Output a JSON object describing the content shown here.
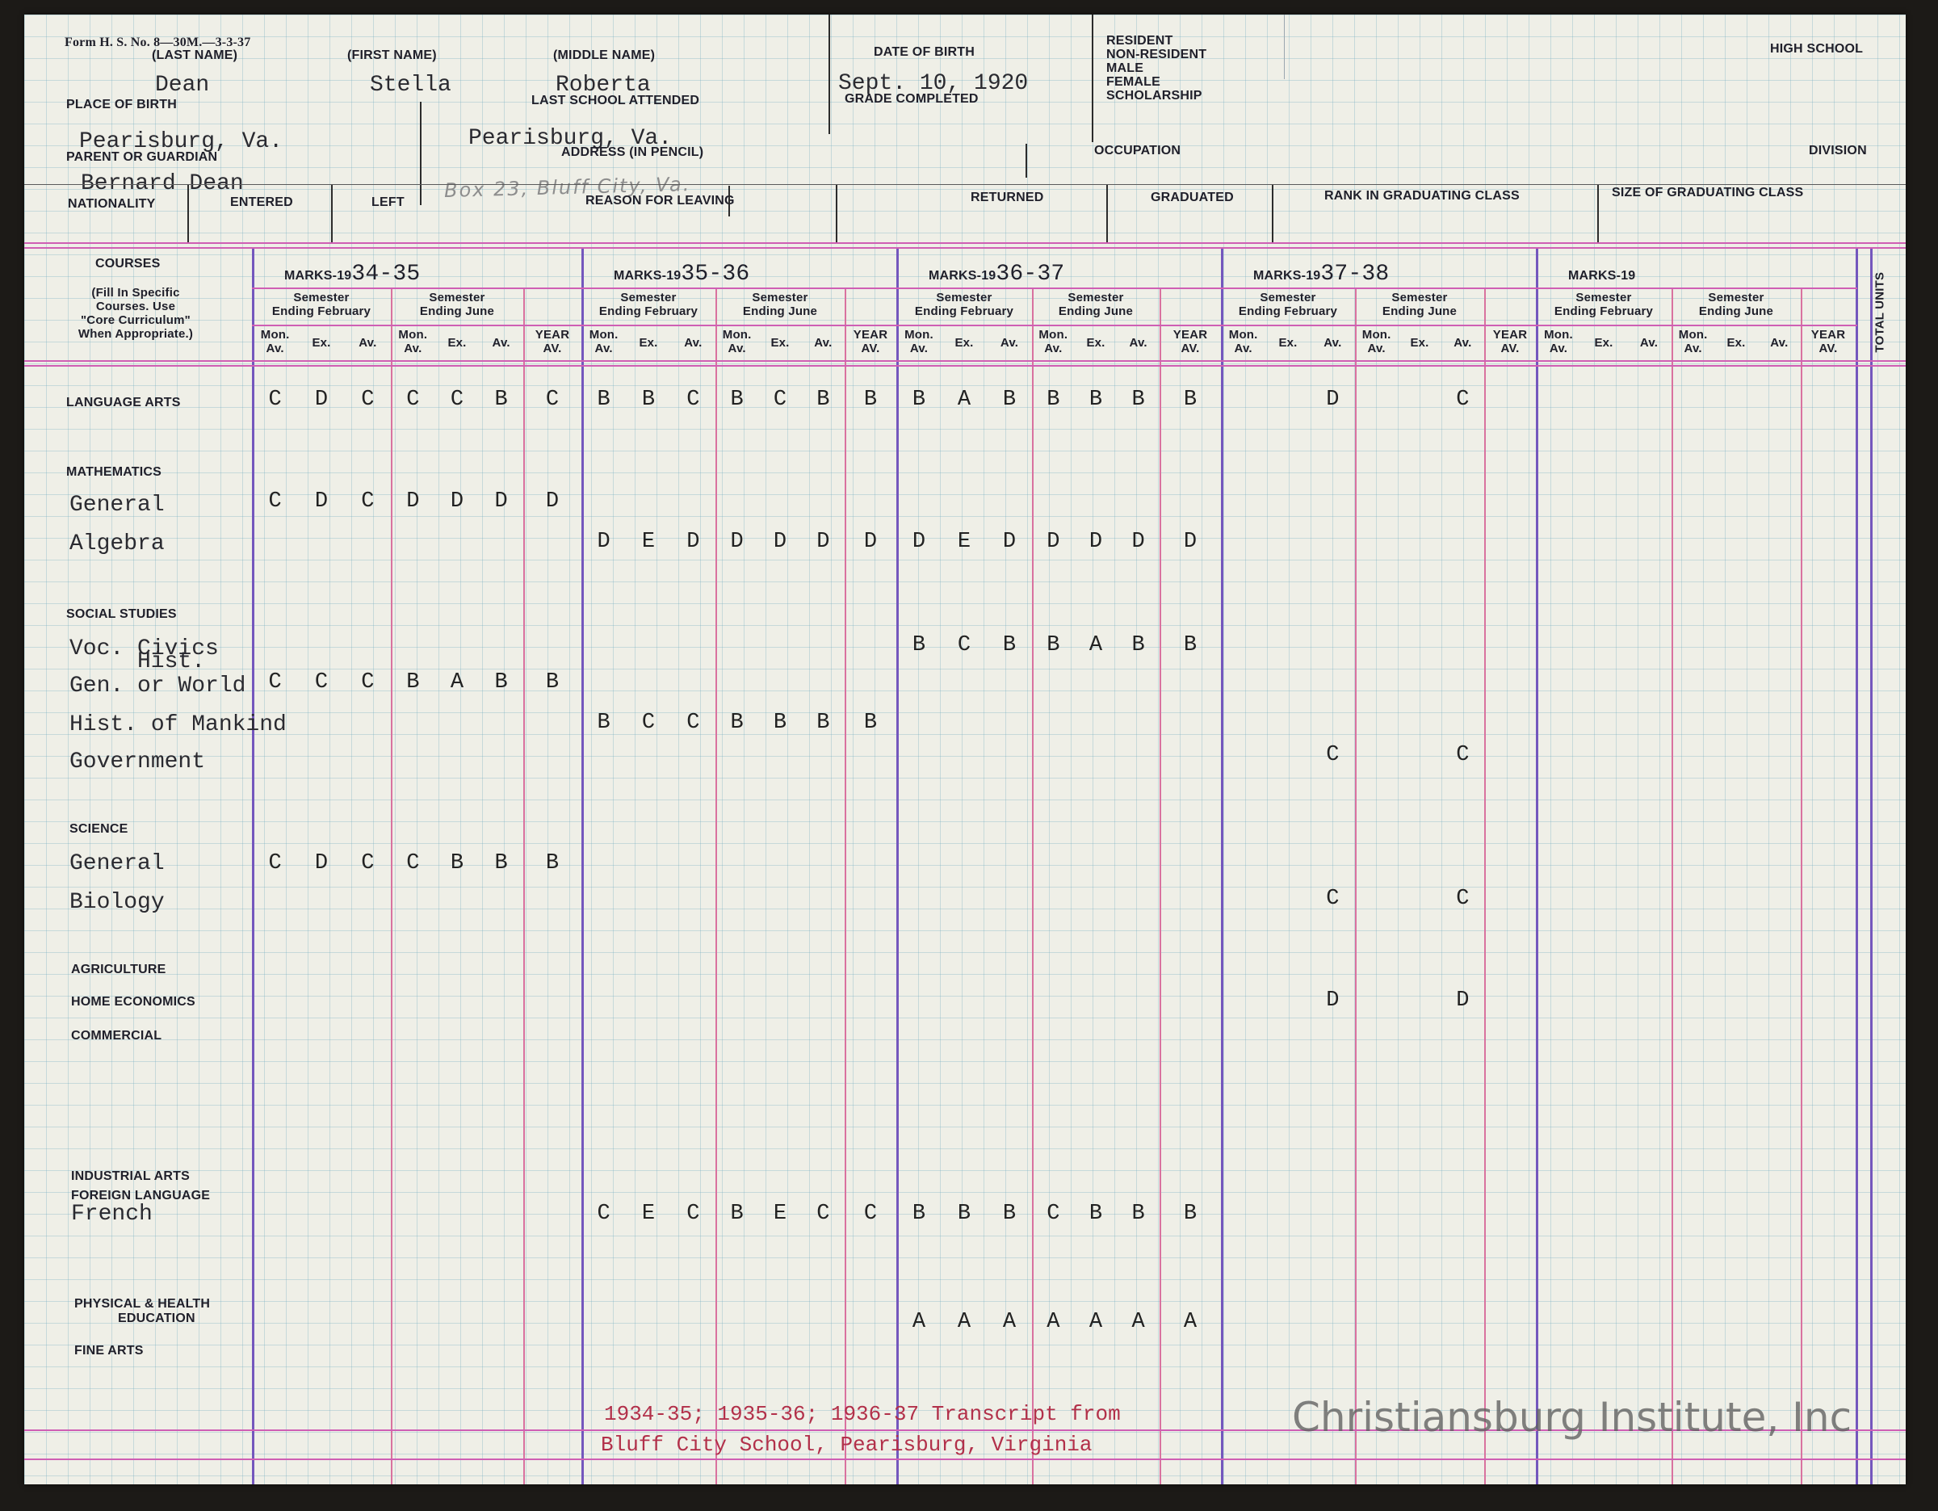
{
  "header": {
    "form_no": "Form H. S. No. 8—30M.—3-3-37",
    "last_name_label": "(LAST NAME)",
    "first_name_label": "(FIRST NAME)",
    "middle_name_label": "(MIDDLE NAME)",
    "dob_label": "DATE OF BIRTH",
    "resident_labels": [
      "RESIDENT",
      "NON-RESIDENT",
      "MALE",
      "FEMALE",
      "SCHOLARSHIP"
    ],
    "high_school_label": "HIGH SCHOOL",
    "place_of_birth_label": "PLACE OF BIRTH",
    "last_school_label": "LAST SCHOOL ATTENDED",
    "grade_completed_label": "GRADE COMPLETED",
    "parent_label": "PARENT OR GUARDIAN",
    "address_label": "ADDRESS (IN PENCIL)",
    "occupation_label": "OCCUPATION",
    "division_label": "DIVISION",
    "nationality_label": "NATIONALITY",
    "entered_label": "ENTERED",
    "left_label": "LEFT",
    "reason_label": "REASON FOR LEAVING",
    "returned_label": "RETURNED",
    "graduated_label": "GRADUATED",
    "rank_label": "RANK IN GRADUATING CLASS",
    "size_label": "SIZE OF GRADUATING CLASS"
  },
  "student": {
    "last_name": "Dean",
    "first_name": "Stella",
    "middle_name": "Roberta",
    "dob": "Sept. 10, 1920",
    "place_of_birth": "Pearisburg, Va.",
    "last_school": "Pearisburg, Va.",
    "parent": "Bernard Dean",
    "address_pencil": "Box 23, Bluff City, Va."
  },
  "marks_header": {
    "courses_label": "COURSES",
    "courses_note": [
      "(Fill In Specific",
      "Courses. Use",
      "\"Core Curriculum\"",
      "When Appropriate.)"
    ],
    "marks_prefix": "MARKS-19",
    "years": [
      "34-35",
      "35-36",
      "36-37",
      "37-38",
      ""
    ],
    "sem_feb": [
      "Semester",
      "Ending February"
    ],
    "sem_june": [
      "Semester",
      "Ending June"
    ],
    "col_mon": [
      "Mon.",
      "Av."
    ],
    "col_ex": "Ex.",
    "col_av": "Av.",
    "col_year": [
      "YEAR",
      "AV."
    ],
    "total_units": "TOTAL UNITS"
  },
  "categories": [
    {
      "label": "LANGUAGE ARTS"
    },
    {
      "label": "MATHEMATICS"
    },
    {
      "label": "SOCIAL STUDIES"
    },
    {
      "label": "SCIENCE"
    },
    {
      "label": "AGRICULTURE"
    },
    {
      "label": "HOME ECONOMICS"
    },
    {
      "label": "COMMERCIAL"
    },
    {
      "label": "INDUSTRIAL ARTS"
    },
    {
      "label": "FOREIGN LANGUAGE"
    },
    {
      "label": "PHYSICAL & HEALTH"
    },
    {
      "label": "EDUCATION"
    },
    {
      "label": "FINE ARTS"
    }
  ],
  "courses": [
    {
      "name": "General"
    },
    {
      "name": "Algebra"
    },
    {
      "name": "Voc. Civics"
    },
    {
      "name": "Hist."
    },
    {
      "name": "Gen. or World"
    },
    {
      "name": "Hist. of Mankind"
    },
    {
      "name": "Government"
    },
    {
      "name": "General"
    },
    {
      "name": "Biology"
    },
    {
      "name": "French"
    }
  ],
  "grades": [
    {
      "row": "language-arts",
      "y1": [
        "C",
        "D",
        "C",
        "C",
        "C",
        "B",
        "C"
      ],
      "y2": [
        "B",
        "B",
        "C",
        "B",
        "C",
        "B",
        "B"
      ],
      "y3": [
        "B",
        "A",
        "B",
        "B",
        "B",
        "B",
        "B"
      ],
      "y4": [
        "",
        "",
        "D",
        "",
        "",
        "C",
        ""
      ]
    },
    {
      "row": "math-general",
      "y1": [
        "C",
        "D",
        "C",
        "D",
        "D",
        "D",
        "D"
      ],
      "y2": [
        "",
        "",
        "",
        "",
        "",
        "",
        ""
      ],
      "y3": [
        "",
        "",
        "",
        "",
        "",
        "",
        ""
      ],
      "y4": [
        "",
        "",
        "",
        "",
        "",
        "",
        ""
      ]
    },
    {
      "row": "math-algebra",
      "y1": [
        "",
        "",
        "",
        "",
        "",
        "",
        ""
      ],
      "y2": [
        "D",
        "E",
        "D",
        "D",
        "D",
        "D",
        "D"
      ],
      "y3": [
        "D",
        "E",
        "D",
        "D",
        "D",
        "D",
        "D"
      ],
      "y4": [
        "",
        "",
        "",
        "",
        "",
        "",
        ""
      ]
    },
    {
      "row": "voc-civics",
      "y1": [
        "",
        "",
        "",
        "",
        "",
        "",
        ""
      ],
      "y2": [
        "",
        "",
        "",
        "",
        "",
        "",
        ""
      ],
      "y3": [
        "B",
        "C",
        "B",
        "B",
        "A",
        "B",
        "B"
      ],
      "y4": [
        "",
        "",
        "",
        "",
        "",
        "",
        ""
      ]
    },
    {
      "row": "world-hist",
      "y1": [
        "C",
        "C",
        "C",
        "B",
        "A",
        "B",
        "B"
      ],
      "y2": [
        "",
        "",
        "",
        "",
        "",
        "",
        ""
      ],
      "y3": [
        "",
        "",
        "",
        "",
        "",
        "",
        ""
      ],
      "y4": [
        "",
        "",
        "",
        "",
        "",
        "",
        ""
      ]
    },
    {
      "row": "hist-mankind",
      "y1": [
        "",
        "",
        "",
        "",
        "",
        "",
        ""
      ],
      "y2": [
        "B",
        "C",
        "C",
        "B",
        "B",
        "B",
        "B"
      ],
      "y3": [
        "",
        "",
        "",
        "",
        "",
        "",
        ""
      ],
      "y4": [
        "",
        "",
        "",
        "",
        "",
        "",
        ""
      ]
    },
    {
      "row": "government",
      "y1": [
        "",
        "",
        "",
        "",
        "",
        "",
        ""
      ],
      "y2": [
        "",
        "",
        "",
        "",
        "",
        "",
        ""
      ],
      "y3": [
        "",
        "",
        "",
        "",
        "",
        "",
        ""
      ],
      "y4": [
        "",
        "",
        "C",
        "",
        "",
        "C",
        ""
      ]
    },
    {
      "row": "sci-general",
      "y1": [
        "C",
        "D",
        "C",
        "C",
        "B",
        "B",
        "B"
      ],
      "y2": [
        "",
        "",
        "",
        "",
        "",
        "",
        ""
      ],
      "y3": [
        "",
        "",
        "",
        "",
        "",
        "",
        ""
      ],
      "y4": [
        "",
        "",
        "",
        "",
        "",
        "",
        ""
      ]
    },
    {
      "row": "biology",
      "y1": [
        "",
        "",
        "",
        "",
        "",
        "",
        ""
      ],
      "y2": [
        "",
        "",
        "",
        "",
        "",
        "",
        ""
      ],
      "y3": [
        "",
        "",
        "",
        "",
        "",
        "",
        ""
      ],
      "y4": [
        "",
        "",
        "C",
        "",
        "",
        "C",
        ""
      ]
    },
    {
      "row": "home-ec",
      "y1": [
        "",
        "",
        "",
        "",
        "",
        "",
        ""
      ],
      "y2": [
        "",
        "",
        "",
        "",
        "",
        "",
        ""
      ],
      "y3": [
        "",
        "",
        "",
        "",
        "",
        "",
        ""
      ],
      "y4": [
        "",
        "",
        "D",
        "",
        "",
        "D",
        ""
      ]
    },
    {
      "row": "french",
      "y1": [
        "",
        "",
        "",
        "",
        "",
        "",
        ""
      ],
      "y2": [
        "C",
        "E",
        "C",
        "B",
        "E",
        "C",
        "C"
      ],
      "y3": [
        "B",
        "B",
        "B",
        "C",
        "B",
        "B",
        "B"
      ],
      "y4": [
        "",
        "",
        "",
        "",
        "",
        "",
        ""
      ]
    },
    {
      "row": "phys-ed",
      "y1": [
        "",
        "",
        "",
        "",
        "",
        "",
        ""
      ],
      "y2": [
        "",
        "",
        "",
        "",
        "",
        "",
        ""
      ],
      "y3": [
        "A",
        "A",
        "A",
        "A",
        "A",
        "A",
        "A"
      ],
      "y4": [
        "",
        "",
        "",
        "",
        "",
        "",
        ""
      ]
    }
  ],
  "footer": {
    "transcript_line1": "1934-35; 1935-36; 1936-37  Transcript from",
    "transcript_line2": "Bluff City School, Pearisburg, Virginia"
  },
  "watermark": "Christiansburg Institute, Inc",
  "colors": {
    "paper": "#efefe7",
    "grid": "#78afc3",
    "pink_rule": "#cf5fb4",
    "purple_rule": "#7457bd",
    "typed_red": "#b2304a"
  }
}
